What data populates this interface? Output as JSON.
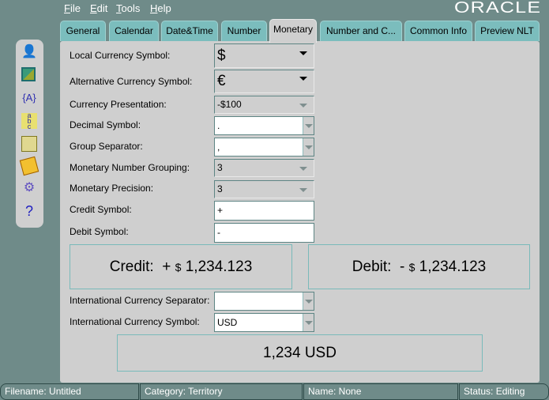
{
  "menu": [
    {
      "first": "F",
      "rest": "ile"
    },
    {
      "first": "E",
      "rest": "dit"
    },
    {
      "first": "T",
      "rest": "ools"
    },
    {
      "first": "H",
      "rest": "elp"
    }
  ],
  "logo": "ORACLE",
  "tabs": [
    "General",
    "Calendar",
    "Date&Time",
    "Number",
    "Monetary",
    "Number and C...",
    "Common Info",
    "Preview NLT"
  ],
  "active_tab": "Monetary",
  "toolbar_icons": [
    "user-speech-icon",
    "map-icon",
    "braces-a-icon",
    "sort-abc-icon",
    "open-folder-icon",
    "save-disk-icon",
    "document-gear-icon",
    "help-icon"
  ],
  "form": {
    "local_currency_symbol": {
      "label": "Local Currency Symbol:",
      "value": "$"
    },
    "alternative_currency_symbol": {
      "label": "Alternative Currency Symbol:",
      "value": "€"
    },
    "currency_presentation": {
      "label": "Currency Presentation:",
      "value": "-$100"
    },
    "decimal_symbol": {
      "label": "Decimal Symbol:",
      "value": "."
    },
    "group_separator": {
      "label": "Group Separator:",
      "value": ","
    },
    "monetary_number_grouping": {
      "label": "Monetary Number Grouping:",
      "value": "3"
    },
    "monetary_precision": {
      "label": "Monetary Precision:",
      "value": "3"
    },
    "credit_symbol": {
      "label": "Credit Symbol:",
      "value": "+"
    },
    "debit_symbol": {
      "label": "Debit Symbol:",
      "value": "-"
    },
    "intl_currency_separator": {
      "label": "International Currency Separator:",
      "value": ""
    },
    "intl_currency_symbol": {
      "label": "International Currency Symbol:",
      "value": "USD"
    }
  },
  "preview": {
    "credit_label": "Credit:",
    "credit_sign": "+",
    "credit_currency": "$",
    "credit_amount": "1,234.123",
    "debit_label": "Debit:",
    "debit_sign": "-",
    "debit_currency": "$",
    "debit_amount": "1,234.123",
    "international": "1,234 USD"
  },
  "status": {
    "filename": "Filename: Untitled",
    "category": "Category: Territory",
    "name": "Name: None",
    "status": "Status: Editing"
  }
}
